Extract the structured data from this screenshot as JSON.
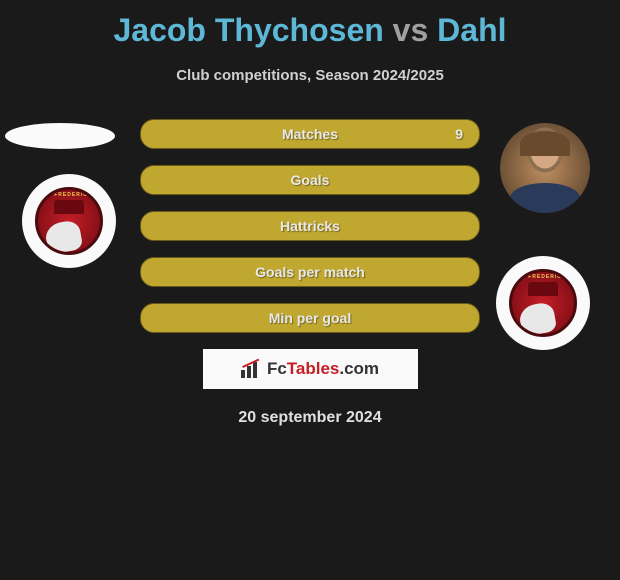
{
  "title": {
    "player1": "Jacob Thychosen",
    "vs": "vs",
    "player2": "Dahl"
  },
  "subtitle": "Club competitions, Season 2024/2025",
  "stats": [
    {
      "label": "Matches",
      "value_right": "9"
    },
    {
      "label": "Goals",
      "value_right": ""
    },
    {
      "label": "Hattricks",
      "value_right": ""
    },
    {
      "label": "Goals per match",
      "value_right": ""
    },
    {
      "label": "Min per goal",
      "value_right": ""
    }
  ],
  "club": {
    "name": "FC FREDERICIA"
  },
  "watermark": {
    "brand_fc": "Fc",
    "brand_tables": "Tables",
    "brand_suffix": ".com"
  },
  "date": "20 september 2024",
  "colors": {
    "background": "#1a1a1a",
    "title_highlight": "#5cb8d6",
    "title_gray": "#a0a0a0",
    "bar_bg": "#c0a830",
    "bar_border": "#6b5a18",
    "badge_red": "#c41e26",
    "text_light": "#e0e0e0"
  }
}
